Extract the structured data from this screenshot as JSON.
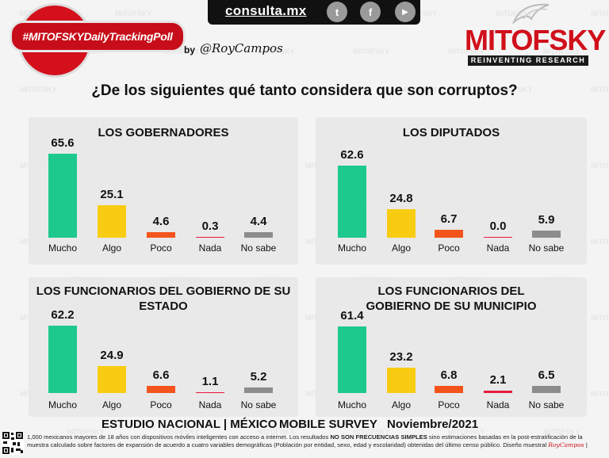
{
  "header": {
    "site": "consulta.mx",
    "social": [
      {
        "icon": "twitter-icon",
        "glyph": "t"
      },
      {
        "icon": "facebook-icon",
        "glyph": "f"
      },
      {
        "icon": "youtube-icon",
        "glyph": "▶"
      }
    ],
    "hashtag": "#MITOFSKYDailyTrackingPoll",
    "byline": "by",
    "byline_signature": "@RoyCampos",
    "brand": "MITOFSKY",
    "brand_tagline": "REINVENTING RESEARCH"
  },
  "question": "¿De los siguientes qué tanto considera que son corruptos?",
  "colors": {
    "mucho": "#1ec98d",
    "algo": "#f9cc14",
    "poco": "#f2541c",
    "nada": "#e8193f",
    "no_sabe": "#8c8c8c",
    "brand_red": "#d0101b"
  },
  "chart_data": [
    {
      "type": "bar",
      "title": "LOS GOBERNADORES",
      "categories": [
        "Mucho",
        "Algo",
        "Poco",
        "Nada",
        "No sabe"
      ],
      "values": [
        65.6,
        25.1,
        4.6,
        0.3,
        4.4
      ],
      "value_labels": [
        "65.6",
        "25.1",
        "4.6",
        "0.3",
        "4.4"
      ],
      "ylim": [
        0,
        70
      ]
    },
    {
      "type": "bar",
      "title": "LOS DIPUTADOS",
      "categories": [
        "Mucho",
        "Algo",
        "Poco",
        "Nada",
        "No sabe"
      ],
      "values": [
        62.6,
        24.8,
        6.7,
        0.0,
        5.9
      ],
      "value_labels": [
        "62.6",
        "24.8",
        "6.7",
        "0.0",
        "5.9"
      ],
      "ylim": [
        0,
        70
      ]
    },
    {
      "type": "bar",
      "title": "LOS FUNCIONARIOS DEL GOBIERNO DE SU ESTADO",
      "categories": [
        "Mucho",
        "Algo",
        "Poco",
        "Nada",
        "No sabe"
      ],
      "values": [
        62.2,
        24.9,
        6.6,
        1.1,
        5.2
      ],
      "value_labels": [
        "62.2",
        "24.9",
        "6.6",
        "1.1",
        "5.2"
      ],
      "ylim": [
        0,
        70
      ]
    },
    {
      "type": "bar",
      "title": "LOS FUNCIONARIOS DEL GOBIERNO DE SU MUNICIPIO",
      "categories": [
        "Mucho",
        "Algo",
        "Poco",
        "Nada",
        "No sabe"
      ],
      "values": [
        61.4,
        23.2,
        6.8,
        2.1,
        6.5
      ],
      "value_labels": [
        "61.4",
        "23.2",
        "6.8",
        "2.1",
        "6.5"
      ],
      "ylim": [
        0,
        70
      ]
    }
  ],
  "footer": {
    "study": "ESTUDIO NACIONAL | MÉXICO",
    "survey": "MOBILE SURVEY",
    "date": "Noviembre/2021",
    "disclaimer_a": "1,000 mexicanos mayores de 18 años con dispositivos móviles inteligentes con acceso a internet. Los resultados ",
    "disclaimer_bold": "NO SON FRECUENCIAS SIMPLES",
    "disclaimer_b": " sino estimaciones basadas en la post-estratificación de la muestra calculado sobre factores de expansión de acuerdo a cuatro variables demográficas (Población por entidad, sexo, edad y escolaridad) obtenidas del último censo público. Diseño muestral ",
    "disclaimer_signature": "RoyCampos",
    "disclaimer_end": " |"
  }
}
